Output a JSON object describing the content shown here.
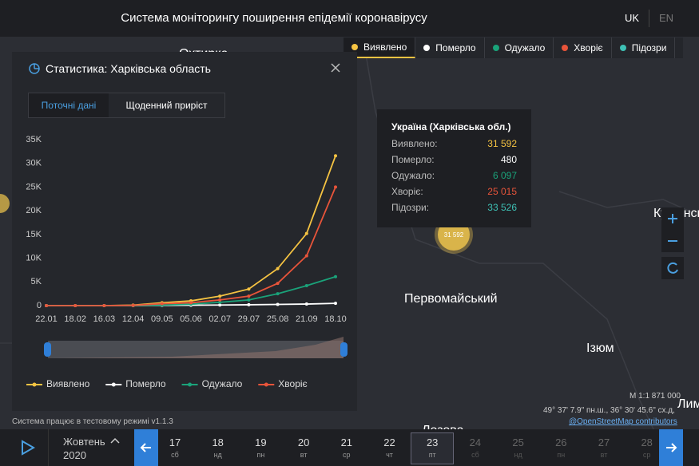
{
  "header": {
    "title": "Система моніторингу поширення епідемії коронавірусу",
    "languages": [
      "UK",
      "EN"
    ]
  },
  "layers": [
    {
      "name": "Виявлено",
      "color": "#f5c342"
    },
    {
      "name": "Померло",
      "color": "#ffffff"
    },
    {
      "name": "Одужало",
      "color": "#1aa37a"
    },
    {
      "name": "Хворіє",
      "color": "#e8543a"
    },
    {
      "name": "Підозри",
      "color": "#3ec1b5"
    }
  ],
  "panel": {
    "title": "Статистика: Харківська область",
    "tabs": [
      "Поточні дані",
      "Щоденний приріст"
    ]
  },
  "chart_data": {
    "type": "line",
    "categories": [
      "22.01",
      "18.02",
      "16.03",
      "12.04",
      "09.05",
      "05.06",
      "02.07",
      "29.07",
      "25.08",
      "21.09",
      "18.10"
    ],
    "series": [
      {
        "name": "Виявлено",
        "color": "#f5c342",
        "values": [
          0,
          0,
          0,
          100,
          600,
          1000,
          2000,
          3500,
          7800,
          15200,
          31592
        ]
      },
      {
        "name": "Померло",
        "color": "#ffffff",
        "values": [
          0,
          0,
          0,
          0,
          50,
          80,
          130,
          180,
          250,
          330,
          480
        ]
      },
      {
        "name": "Одужало",
        "color": "#1aa37a",
        "values": [
          0,
          0,
          0,
          0,
          100,
          300,
          700,
          1200,
          2500,
          4200,
          6097
        ]
      },
      {
        "name": "Хворіє",
        "color": "#e8543a",
        "values": [
          0,
          0,
          0,
          50,
          400,
          600,
          1200,
          2000,
          4700,
          10500,
          25015
        ]
      }
    ],
    "ylim": [
      0,
      35000
    ],
    "yticks": [
      0,
      {
        "value": 5000,
        "label": "5K"
      },
      {
        "value": 10000,
        "label": "10K"
      },
      {
        "value": 15000,
        "label": "15K"
      },
      {
        "value": 20000,
        "label": "20K"
      },
      {
        "value": 25000,
        "label": "25K"
      },
      {
        "value": 30000,
        "label": "30K"
      },
      {
        "value": 35000,
        "label": "35K"
      }
    ]
  },
  "tooltip": {
    "title": "Україна (Харківська обл.)",
    "rows": [
      {
        "label": "Виявлено:",
        "value": "31 592",
        "color": "#f5c342"
      },
      {
        "label": "Померло:",
        "value": "480",
        "color": "#ffffff"
      },
      {
        "label": "Одужало:",
        "value": "6 097",
        "color": "#1aa37a"
      },
      {
        "label": "Хворіє:",
        "value": "25 015",
        "color": "#e8543a"
      },
      {
        "label": "Підозри:",
        "value": "33 526",
        "color": "#3ec1b5"
      }
    ]
  },
  "map": {
    "labels": [
      "Охтирка",
      "Куп'янськ",
      "Первомайський",
      "Ізюм",
      "Лозова",
      "Лиман"
    ],
    "marker": "31 592",
    "scale": "М 1:1 871 000",
    "coords": "49° 37' 7.9\" пн.ш., 36° 30' 45.6\" сх.д,",
    "attribution": "@OpenStreetMap contributors",
    "status": "Система працює в тестовому режимі v1.1.3"
  },
  "timeline": {
    "month": "Жовтень",
    "year": "2020",
    "selected": 6,
    "days": [
      {
        "day": "17",
        "weekday": "сб"
      },
      {
        "day": "18",
        "weekday": "нд"
      },
      {
        "day": "19",
        "weekday": "пн"
      },
      {
        "day": "20",
        "weekday": "вт"
      },
      {
        "day": "21",
        "weekday": "ср"
      },
      {
        "day": "22",
        "weekday": "чт"
      },
      {
        "day": "23",
        "weekday": "пт"
      },
      {
        "day": "24",
        "weekday": "сб"
      },
      {
        "day": "25",
        "weekday": "нд"
      },
      {
        "day": "26",
        "weekday": "пн"
      },
      {
        "day": "27",
        "weekday": "вт"
      },
      {
        "day": "28",
        "weekday": "ср"
      }
    ]
  }
}
